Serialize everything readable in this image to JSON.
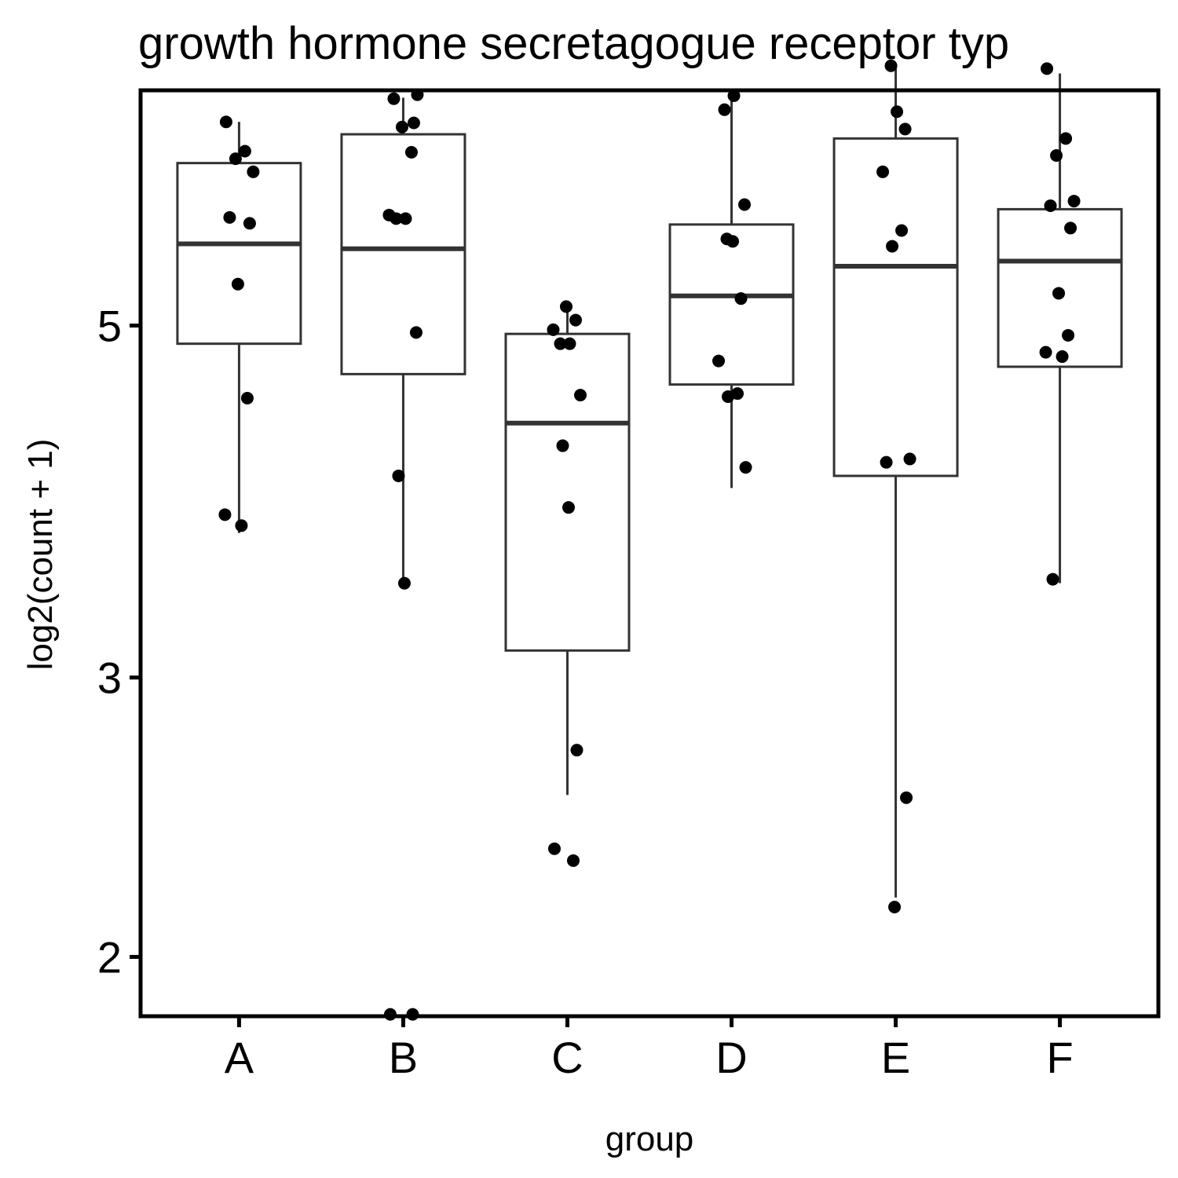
{
  "chart_data": {
    "type": "box",
    "title": "growth hormone secretagogue receptor typ",
    "xlabel": "group",
    "ylabel": "log2(count + 1)",
    "y_scale": "log2",
    "ylim": [
      1.835,
      7.035
    ],
    "y_ticks": [
      2,
      3,
      5
    ],
    "categories": [
      "A",
      "B",
      "C",
      "D",
      "E",
      "F"
    ],
    "boxes": [
      {
        "group": "A",
        "lower_whisker": 3.7,
        "q1": 4.87,
        "median": 5.63,
        "q3": 6.33,
        "upper_whisker": 6.72
      },
      {
        "group": "B",
        "lower_whisker": 3.44,
        "q1": 4.66,
        "median": 5.59,
        "q3": 6.6,
        "upper_whisker": 6.96
      },
      {
        "group": "C",
        "lower_whisker": 2.53,
        "q1": 3.12,
        "median": 4.34,
        "q3": 4.94,
        "upper_whisker": 5.11
      },
      {
        "group": "D",
        "lower_whisker": 3.95,
        "q1": 4.59,
        "median": 5.22,
        "q3": 5.79,
        "upper_whisker": 6.96
      },
      {
        "group": "E",
        "lower_whisker": 2.18,
        "q1": 4.02,
        "median": 5.45,
        "q3": 6.56,
        "upper_whisker": 7.26
      },
      {
        "group": "F",
        "lower_whisker": 3.44,
        "q1": 4.71,
        "median": 5.49,
        "q3": 5.92,
        "upper_whisker": 7.21
      }
    ],
    "points": [
      {
        "group": "A",
        "values": [
          6.72,
          6.44,
          6.37,
          6.25,
          5.85,
          5.8,
          5.31,
          4.5,
          3.8,
          3.74
        ]
      },
      {
        "group": "B",
        "values": [
          6.99,
          6.95,
          6.71,
          6.67,
          6.43,
          5.87,
          5.84,
          5.84,
          4.95,
          4.02,
          3.44,
          1.84,
          1.84
        ]
      },
      {
        "group": "C",
        "values": [
          5.14,
          5.04,
          4.97,
          4.87,
          4.87,
          4.52,
          4.2,
          3.84,
          2.7,
          2.34,
          2.3
        ]
      },
      {
        "group": "D",
        "values": [
          6.98,
          6.84,
          5.96,
          5.67,
          5.65,
          5.2,
          4.75,
          4.53,
          4.51,
          4.07
        ]
      },
      {
        "group": "E",
        "values": [
          7.29,
          6.82,
          6.65,
          6.25,
          5.74,
          5.61,
          4.12,
          4.1,
          2.52,
          2.15
        ]
      },
      {
        "group": "F",
        "values": [
          7.26,
          6.56,
          6.4,
          5.99,
          5.95,
          5.76,
          5.24,
          4.93,
          4.81,
          4.78,
          3.46
        ]
      }
    ]
  }
}
